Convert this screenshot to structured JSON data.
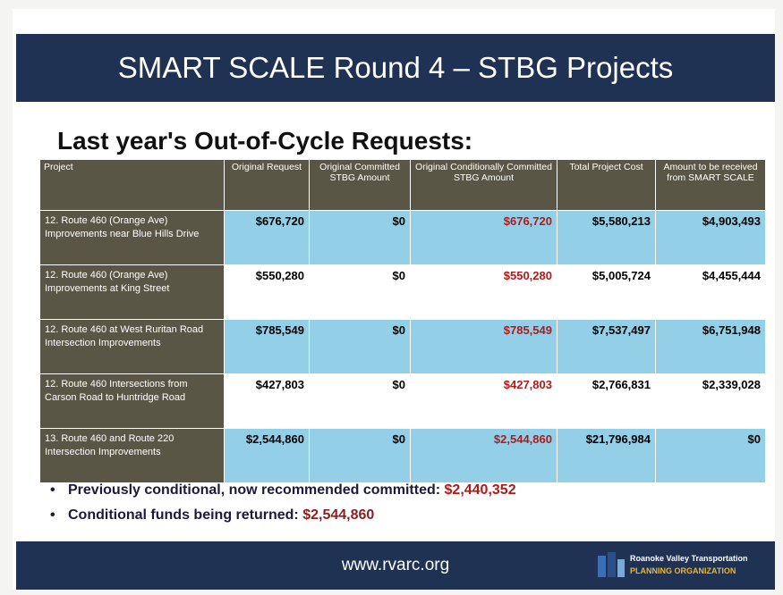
{
  "header": {
    "title": "SMART SCALE Round 4 – STBG Projects"
  },
  "subtitle": "Last year's Out-of-Cycle Requests:",
  "table": {
    "columns": [
      "Project",
      "Original Request",
      "Original Committed STBG Amount",
      "Original Conditionally Committed STBG Amount",
      "Total Project Cost",
      "Amount to be received from SMART SCALE"
    ],
    "rows": [
      [
        "12. Route 460 (Orange Ave) Improvements near Blue Hills Drive",
        "$676,720",
        "$0",
        "$676,720",
        "$5,580,213",
        "$4,903,493"
      ],
      [
        "12. Route 460 (Orange Ave) Improvements at King Street",
        "$550,280",
        "$0",
        "$550,280",
        "$5,005,724",
        "$4,455,444"
      ],
      [
        "12. Route 460 at West Ruritan Road Intersection Improvements",
        "$785,549",
        "$0",
        "$785,549",
        "$7,537,497",
        "$6,751,948"
      ],
      [
        "12. Route 460 Intersections from Carson Road to Huntridge Road",
        "$427,803",
        "$0",
        "$427,803",
        "$2,766,831",
        "$2,339,028"
      ],
      [
        "13. Route 460 and Route 220 Intersection Improvements",
        "$2,544,860",
        "$0",
        "$2,544,860",
        "$21,796,984",
        "$0"
      ]
    ]
  },
  "bullets": [
    {
      "text": "Previously conditional, now recommended committed: ",
      "value": "$2,440,352"
    },
    {
      "text": "Conditional funds being returned: ",
      "value": "$2,544,860"
    }
  ],
  "footer": {
    "url": "www.rvarc.org",
    "logo_line1": "Roanoke Valley Transportation",
    "logo_line2": "PLANNING ORGANIZATION"
  }
}
